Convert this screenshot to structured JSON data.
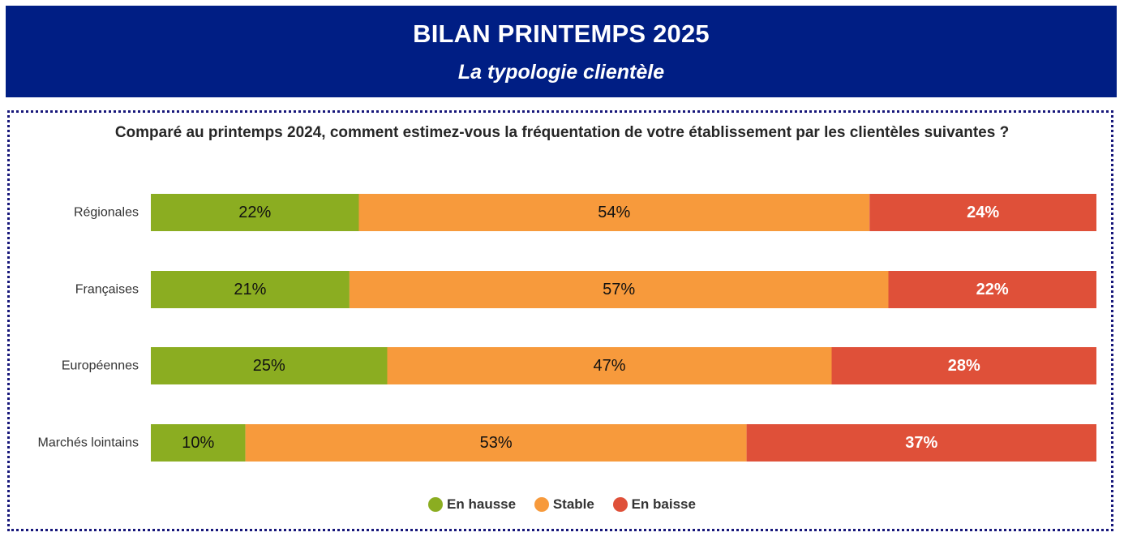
{
  "header": {
    "title": "BILAN PRINTEMPS 2025",
    "subtitle": "La typologie clientèle"
  },
  "colors": {
    "banner": "#001e84",
    "border": "#16167a",
    "hausse": "#8bad21",
    "stable": "#f79a3c",
    "baisse": "#df5039"
  },
  "chart_data": {
    "type": "bar",
    "orientation": "horizontal",
    "stacked": "percent",
    "title": "Comparé au printemps 2024, comment estimez-vous la fréquentation de votre établissement par les clientèles suivantes ?",
    "categories": [
      "Régionales",
      "Françaises",
      "Européennes",
      "Marchés lointains"
    ],
    "series": [
      {
        "name": "En hausse",
        "values": [
          22,
          21,
          25,
          10
        ],
        "labels": [
          "22%",
          "21%",
          "25%",
          "10%"
        ],
        "color": "#8bad21",
        "label_color": "#111111"
      },
      {
        "name": "Stable",
        "values": [
          54,
          57,
          47,
          53
        ],
        "labels": [
          "54%",
          "57%",
          "47%",
          "53%"
        ],
        "color": "#f79a3c",
        "label_color": "#111111"
      },
      {
        "name": "En baisse",
        "values": [
          24,
          22,
          28,
          37
        ],
        "labels": [
          "24%",
          "22%",
          "28%",
          "37%"
        ],
        "color": "#df5039",
        "label_color": "#ffffff"
      }
    ],
    "xlim": [
      0,
      100
    ],
    "grid": false,
    "legend": "bottom-center"
  }
}
